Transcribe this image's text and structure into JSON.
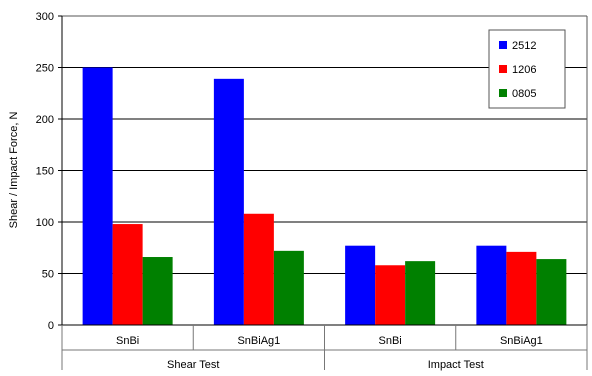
{
  "chart_data": {
    "type": "bar",
    "title": "",
    "xlabel": "",
    "ylabel": "Shear / Impact Force, N",
    "ylim": [
      0,
      300
    ],
    "yticks": [
      0,
      50,
      100,
      150,
      200,
      250,
      300
    ],
    "grid": true,
    "legend_position": "top-right",
    "categories": [
      "SnBi",
      "SnBiAg1",
      "SnBi",
      "SnBiAg1"
    ],
    "groups": [
      {
        "label": "Shear Test",
        "categories": [
          "SnBi",
          "SnBiAg1"
        ]
      },
      {
        "label": "Impact Test",
        "categories": [
          "SnBi",
          "SnBiAg1"
        ]
      }
    ],
    "series": [
      {
        "name": "2512",
        "color": "#0000ff",
        "values": [
          250,
          239,
          77,
          77
        ]
      },
      {
        "name": "1206",
        "color": "#ff0000",
        "values": [
          98,
          108,
          58,
          71
        ]
      },
      {
        "name": "0805",
        "color": "#008000",
        "values": [
          66,
          72,
          62,
          64
        ]
      }
    ]
  }
}
